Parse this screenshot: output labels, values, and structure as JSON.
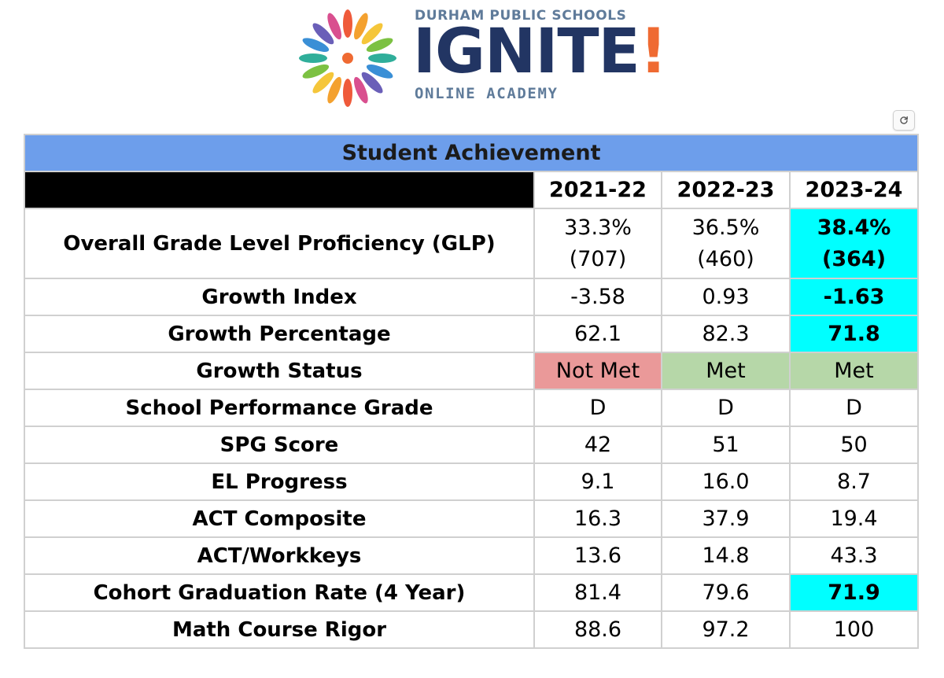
{
  "logo": {
    "top_text": "DURHAM PUBLIC SCHOOLS",
    "main_text": "IGNITE",
    "main_mark": "!",
    "bottom_text": "ONLINE ACADEMY",
    "burst_colors": [
      "#ef5a3a",
      "#f4a12f",
      "#f5c63a",
      "#7cc142",
      "#2fae9a",
      "#3a8fd6",
      "#6a5fb8",
      "#d94f8f"
    ],
    "center_color": "#ef6a32"
  },
  "refresh_icon": "refresh-icon",
  "table": {
    "title": "Student Achievement",
    "years": [
      "2021-22",
      "2022-23",
      "2023-24"
    ],
    "colors": {
      "title_bg": "#6d9eeb",
      "highlight": "#00ffff",
      "not_met": "#ea9999",
      "met": "#b6d7a8"
    },
    "rows": [
      {
        "label": "Overall Grade Level Proficiency (GLP)",
        "values": [
          "33.3%\n(707)",
          "36.5%\n(460)",
          "38.4%\n(364)"
        ],
        "v0": "33.3%",
        "v0b": "(707)",
        "v1": "36.5%",
        "v1b": "(460)",
        "v2": "38.4%",
        "v2b": "(364)"
      },
      {
        "label": "Growth Index",
        "values": [
          "-3.58",
          "0.93",
          "-1.63"
        ]
      },
      {
        "label": "Growth Percentage",
        "values": [
          "62.1",
          "82.3",
          "71.8"
        ]
      },
      {
        "label": "Growth Status",
        "values": [
          "Not Met",
          "Met",
          "Met"
        ]
      },
      {
        "label": "School Performance Grade",
        "values": [
          "D",
          "D",
          "D"
        ]
      },
      {
        "label": "SPG Score",
        "values": [
          "42",
          "51",
          "50"
        ]
      },
      {
        "label": "EL Progress",
        "values": [
          "9.1",
          "16.0",
          "8.7"
        ]
      },
      {
        "label": "ACT Composite",
        "values": [
          "16.3",
          "37.9",
          "19.4"
        ]
      },
      {
        "label": "ACT/Workkeys",
        "values": [
          "13.6",
          "14.8",
          "43.3"
        ]
      },
      {
        "label": "Cohort Graduation Rate (4 Year)",
        "values": [
          "81.4",
          "79.6",
          "71.9"
        ]
      },
      {
        "label": "Math Course Rigor",
        "values": [
          "88.6",
          "97.2",
          "100"
        ]
      }
    ]
  }
}
